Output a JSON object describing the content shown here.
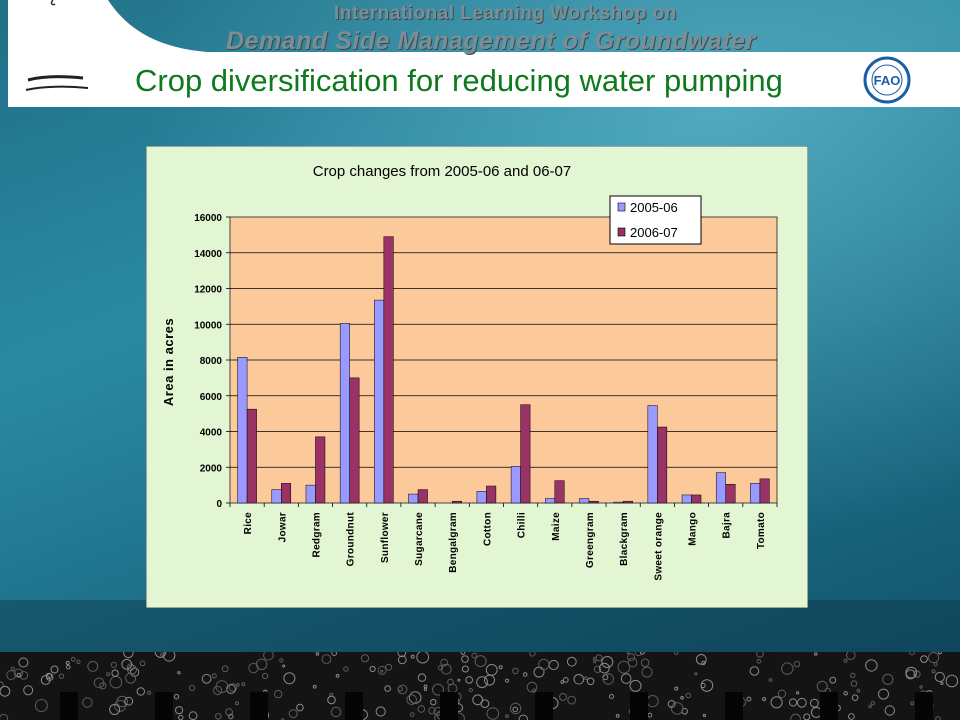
{
  "header": {
    "workshop_line1": "International Learning Workshop on",
    "workshop_line2": "Demand Side Management of Groundwater",
    "logo_text": "FAO"
  },
  "slide": {
    "title": "Crop diversification for reducing water pumping"
  },
  "colors": {
    "background": "#1f6f86",
    "title": "#0e7a1d",
    "chart_area": "#e3f6d3",
    "plot_area": "#fcc99a",
    "series_2005": "#9999ff",
    "series_2006": "#993366"
  },
  "chart_data": {
    "type": "bar",
    "title": "Crop changes from 2005-06 and 06-07",
    "xlabel": "",
    "ylabel": "Area in acres",
    "ylim": [
      0,
      16000
    ],
    "yticks": [
      0,
      2000,
      4000,
      6000,
      8000,
      10000,
      12000,
      14000,
      16000
    ],
    "grid": true,
    "legend": "top-right",
    "categories": [
      "Rice",
      "Jowar",
      "Redgram",
      "Groundnut",
      "Sunflower",
      "Sugarcane",
      "Bengalgram",
      "Cotton",
      "Chilli",
      "Maize",
      "Greengram",
      "Blackgram",
      "Sweet orange",
      "Mango",
      "Bajra",
      "Tomato"
    ],
    "series": [
      {
        "name": "2005-06",
        "values": [
          8150,
          750,
          1000,
          10050,
          11350,
          500,
          0,
          650,
          2050,
          250,
          250,
          50,
          5450,
          450,
          1700,
          1100
        ]
      },
      {
        "name": "2006-07",
        "values": [
          5250,
          1100,
          3700,
          7000,
          14900,
          750,
          100,
          950,
          5500,
          1250,
          100,
          100,
          4250,
          450,
          1050,
          1350
        ]
      }
    ]
  }
}
